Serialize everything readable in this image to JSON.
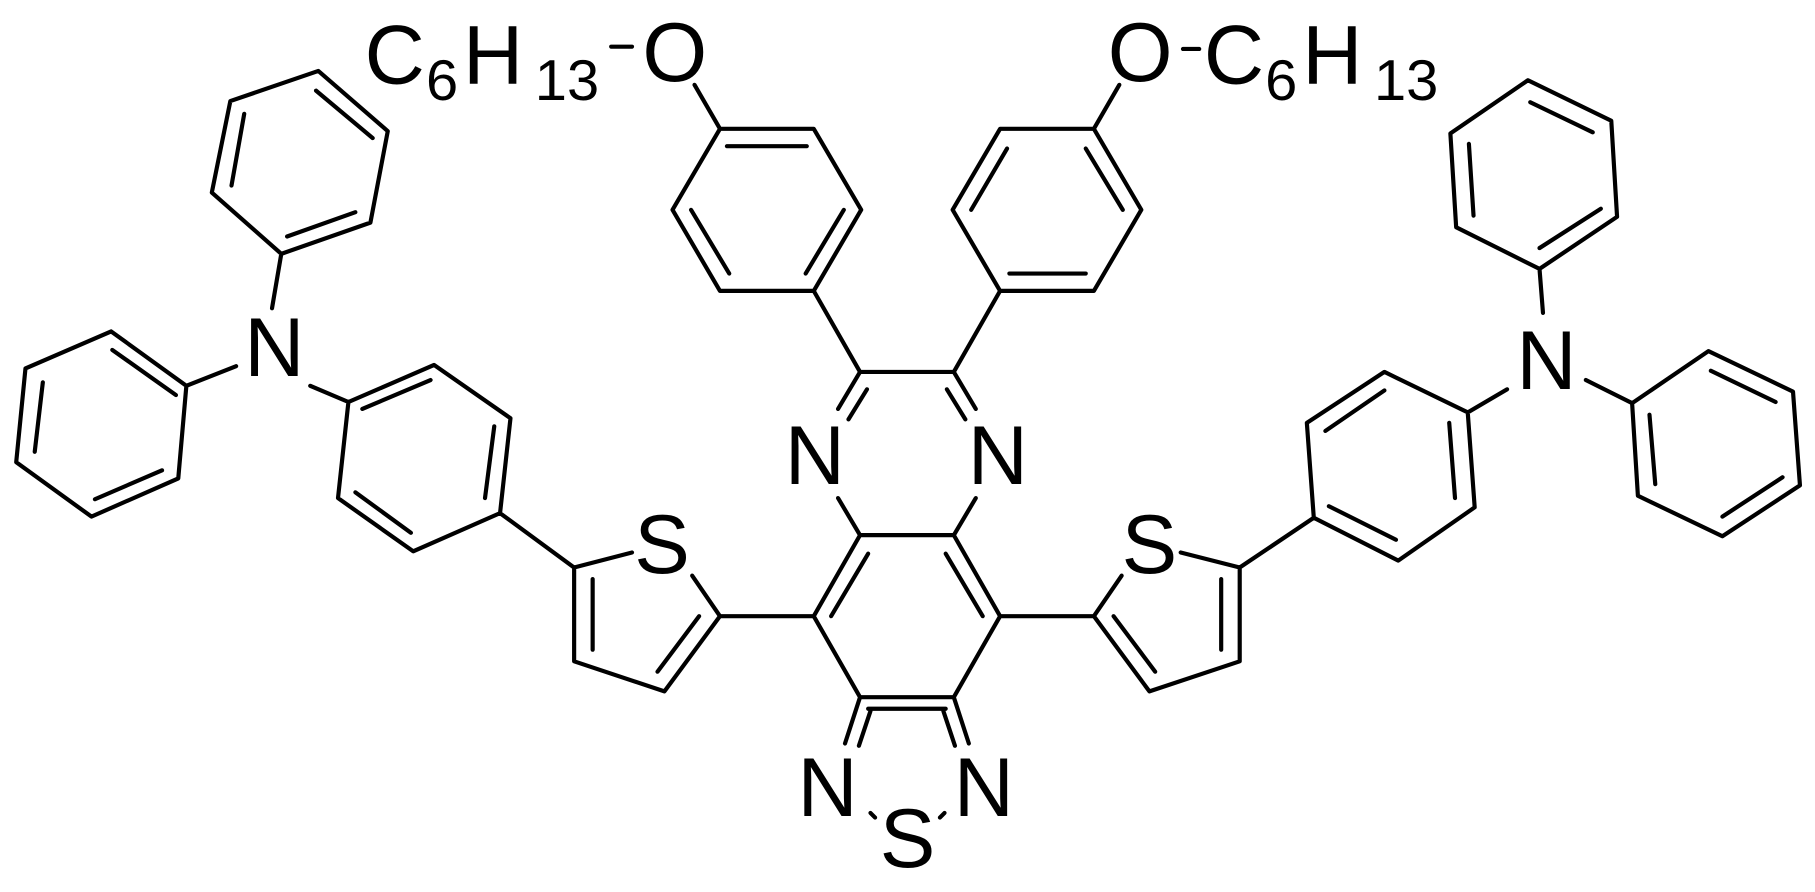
{
  "atoms": [
    "N",
    "N",
    "N",
    "N",
    "N",
    "N",
    "S",
    "S",
    "S",
    "O",
    "O"
  ],
  "hexyl_groups": [
    {
      "carbon": "C",
      "carbon_count": "6",
      "hydrogen": "H",
      "hydrogen_count": "13"
    },
    {
      "carbon": "C",
      "carbon_count": "6",
      "hydrogen": "H",
      "hydrogen_count": "13"
    }
  ]
}
